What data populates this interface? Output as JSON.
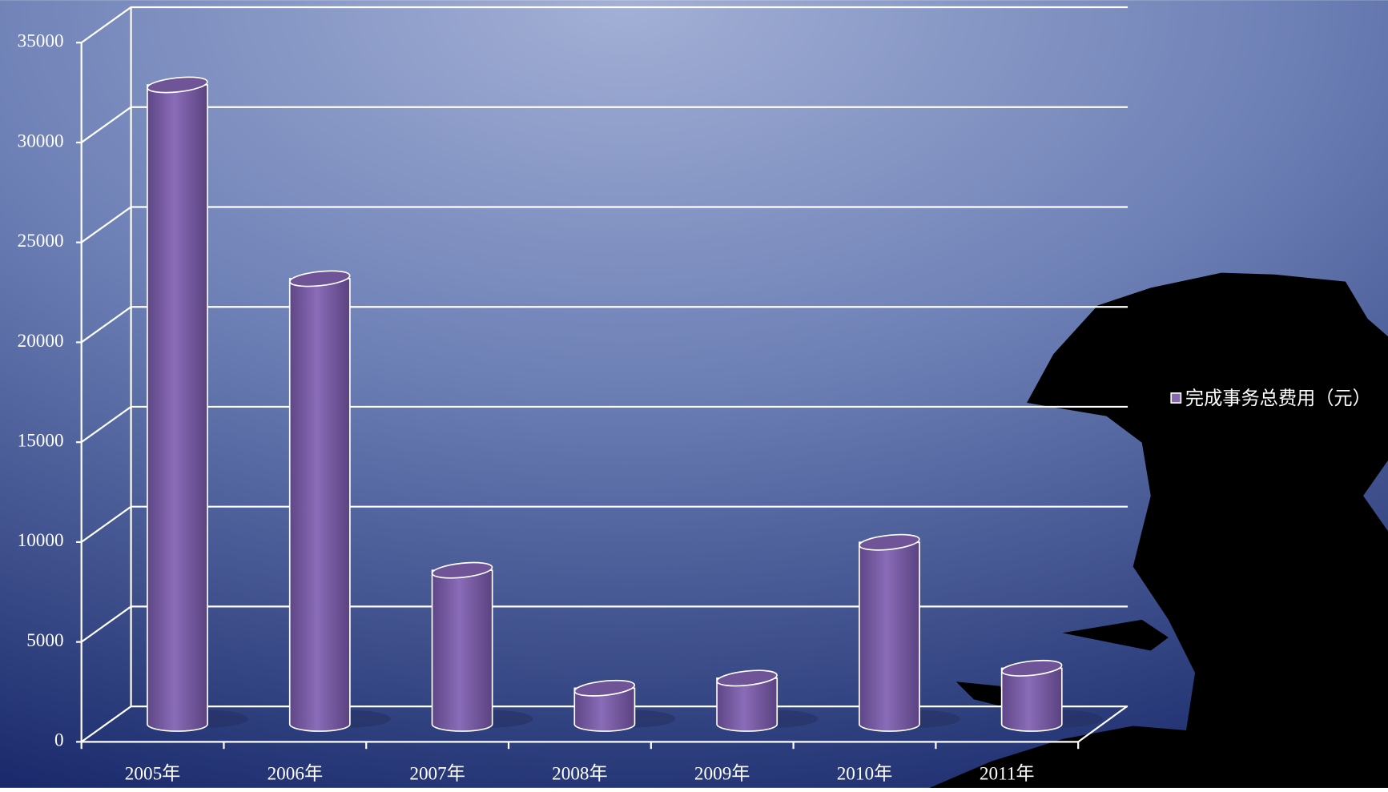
{
  "chart_data": {
    "type": "bar3d",
    "categories": [
      "2005年",
      "2006年",
      "2007年",
      "2008年",
      "2009年",
      "2010年",
      "2011年"
    ],
    "series": [
      {
        "name": "完成事务总费用（元）",
        "color": "#8668b0",
        "values": [
          32000,
          22300,
          7700,
          1800,
          2300,
          9100,
          2800
        ]
      }
    ],
    "ylim": [
      0,
      35000
    ],
    "yticks": [
      0,
      5000,
      10000,
      15000,
      20000,
      25000,
      30000,
      35000
    ],
    "grid": true,
    "legend": "right"
  }
}
